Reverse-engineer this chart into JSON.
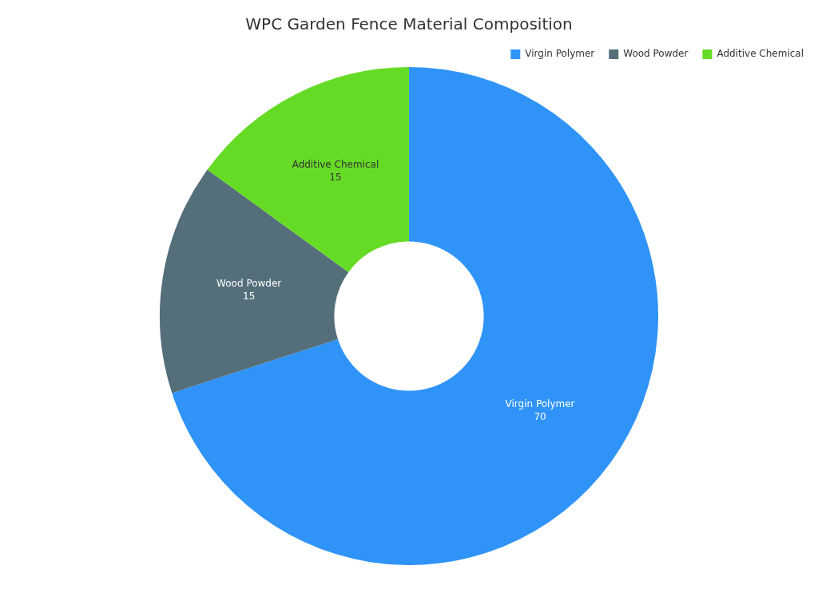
{
  "chart_data": {
    "type": "donut",
    "title": "WPC Garden Fence Material Composition",
    "categories": [
      "Virgin Polymer",
      "Wood Powder",
      "Additive Chemical"
    ],
    "values": [
      70,
      15,
      15
    ],
    "colors": [
      "#2f93f8",
      "#546e7a",
      "#66db26"
    ],
    "data_labels": true,
    "legend": "top right"
  }
}
